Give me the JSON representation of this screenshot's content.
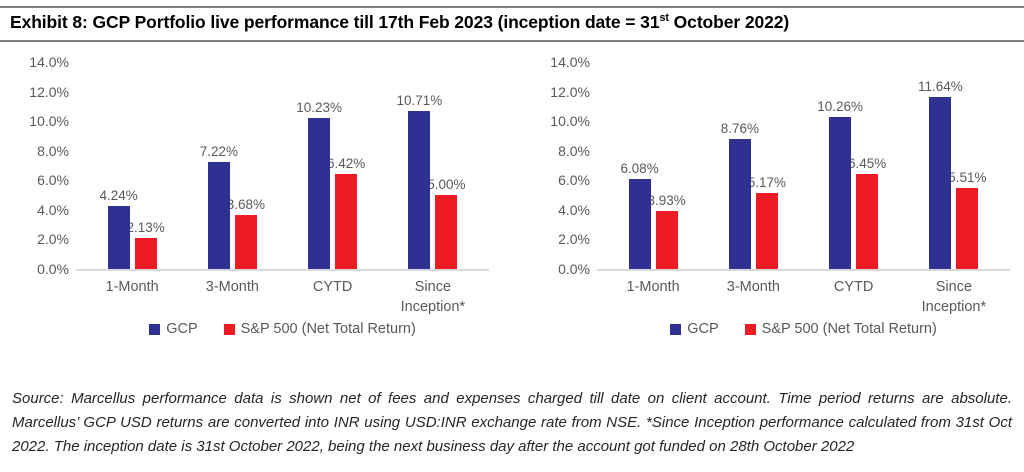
{
  "header": {
    "title_part1": "Exhibit 8: GCP Portfolio live performance till 17th Feb 2023 (inception date = 31",
    "title_sup": "st",
    "title_part2": " October 2022)"
  },
  "colors": {
    "gcp_blue": "#2E3192",
    "sp500_red": "#ED1C24",
    "label_gray": "#595959",
    "axis_line_gray": "#D9D9D9"
  },
  "chart_data": [
    {
      "type": "bar",
      "title": "",
      "xlabel": "",
      "ylabel": "",
      "categories": [
        "1-Month",
        "3-Month",
        "CYTD",
        "Since Inception*"
      ],
      "series": [
        {
          "name": "GCP",
          "color": "#2E3192",
          "values": [
            4.24,
            7.22,
            10.23,
            10.71
          ]
        },
        {
          "name": "S&P 500 (Net Total Return)",
          "color": "#ED1C24",
          "values": [
            2.13,
            3.68,
            6.42,
            5.0
          ]
        }
      ],
      "ylim": [
        0,
        14
      ],
      "ytick_step": 2,
      "ytick_labels": [
        "0.0%",
        "2.0%",
        "4.0%",
        "6.0%",
        "8.0%",
        "10.0%",
        "12.0%",
        "14.0%"
      ],
      "data_labels": true,
      "value_label_format": "0.00%",
      "grid": false,
      "legend_position": "bottom"
    },
    {
      "type": "bar",
      "title": "",
      "xlabel": "",
      "ylabel": "",
      "categories": [
        "1-Month",
        "3-Month",
        "CYTD",
        "Since Inception*"
      ],
      "series": [
        {
          "name": "GCP",
          "color": "#2E3192",
          "values": [
            6.08,
            8.76,
            10.26,
            11.64
          ]
        },
        {
          "name": "S&P 500 (Net Total Return)",
          "color": "#ED1C24",
          "values": [
            3.93,
            5.17,
            6.45,
            5.51
          ]
        }
      ],
      "ylim": [
        0,
        14
      ],
      "ytick_step": 2,
      "ytick_labels": [
        "0.0%",
        "2.0%",
        "4.0%",
        "6.0%",
        "8.0%",
        "10.0%",
        "12.0%",
        "14.0%"
      ],
      "data_labels": true,
      "value_label_format": "0.00%",
      "grid": false,
      "legend_position": "bottom"
    }
  ],
  "source_note": "Source: Marcellus performance data is shown net of fees and expenses charged till date on client account. Time period returns are absolute. Marcellus’ GCP USD returns are converted into INR using USD:INR exchange rate from NSE. *Since Inception performance calculated from 31st Oct 2022. The inception date is 31st October 2022, being the next business day after the account got funded on 28th October 2022"
}
